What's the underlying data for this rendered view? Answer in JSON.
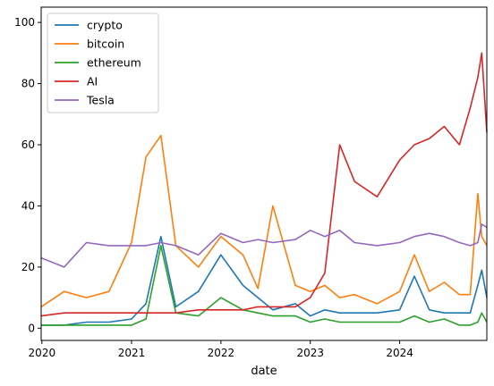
{
  "chart_data": {
    "type": "line",
    "title": "",
    "xlabel": "date",
    "ylabel": "",
    "x": [
      "2019-12-29",
      "2020-04-01",
      "2020-07-01",
      "2020-10-01",
      "2021-01-01",
      "2021-03-01",
      "2021-05-01",
      "2021-07-01",
      "2021-10-01",
      "2022-01-01",
      "2022-04-01",
      "2022-06-01",
      "2022-08-01",
      "2022-11-01",
      "2023-01-01",
      "2023-03-01",
      "2023-05-01",
      "2023-07-01",
      "2023-10-01",
      "2024-01-01",
      "2024-03-01",
      "2024-05-01",
      "2024-07-01",
      "2024-09-01",
      "2024-10-15",
      "2024-11-15",
      "2024-12-01",
      "2024-12-22"
    ],
    "series": [
      {
        "name": "crypto",
        "color": "#1f77b4",
        "values": [
          1,
          1,
          2,
          2,
          3,
          8,
          30,
          7,
          12,
          24,
          14,
          10,
          6,
          8,
          4,
          6,
          5,
          5,
          5,
          6,
          17,
          6,
          5,
          5,
          5,
          14,
          19,
          10
        ]
      },
      {
        "name": "bitcoin",
        "color": "#ff7f0e",
        "values": [
          7,
          12,
          10,
          12,
          28,
          56,
          63,
          27,
          20,
          30,
          24,
          13,
          40,
          14,
          12,
          14,
          10,
          11,
          8,
          12,
          24,
          12,
          15,
          11,
          11,
          44,
          30,
          27
        ]
      },
      {
        "name": "ethereum",
        "color": "#2ca02c",
        "values": [
          1,
          1,
          1,
          1,
          1,
          3,
          27,
          5,
          4,
          10,
          6,
          5,
          4,
          4,
          2,
          3,
          2,
          2,
          2,
          2,
          4,
          2,
          3,
          1,
          1,
          2,
          5,
          2
        ]
      },
      {
        "name": "AI",
        "color": "#d62728",
        "values": [
          4,
          5,
          5,
          5,
          5,
          5,
          5,
          5,
          6,
          6,
          6,
          7,
          7,
          7,
          10,
          18,
          60,
          48,
          43,
          55,
          60,
          62,
          66,
          60,
          72,
          82,
          90,
          64
        ]
      },
      {
        "name": "Tesla",
        "color": "#9467bd",
        "values": [
          23,
          20,
          28,
          27,
          27,
          27,
          28,
          27,
          24,
          31,
          28,
          29,
          28,
          29,
          32,
          30,
          32,
          28,
          27,
          28,
          30,
          31,
          30,
          28,
          27,
          28,
          34,
          33
        ]
      }
    ],
    "xlim": [
      "2019-12-29",
      "2024-12-22"
    ],
    "ylim": [
      -4,
      105
    ],
    "xticks": [
      "2020",
      "2021",
      "2022",
      "2023",
      "2024"
    ],
    "yticks": [
      "0",
      "20",
      "40",
      "60",
      "80",
      "100"
    ],
    "grid": false,
    "legend": "top-left"
  }
}
